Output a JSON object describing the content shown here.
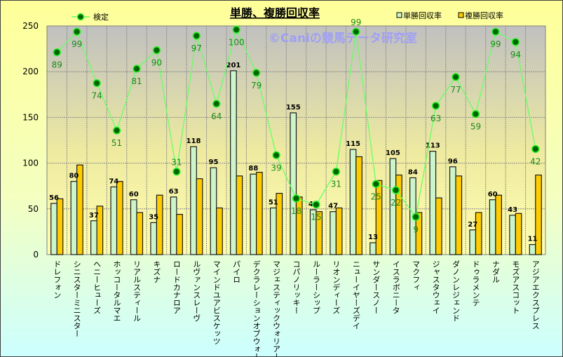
{
  "chart_data": {
    "type": "bar",
    "title": "単勝、複勝回収率",
    "watermark": "©Caniの競馬データ研究室",
    "xlabel": "",
    "ylabel": "",
    "ylim": [
      0,
      250
    ],
    "yticks": [
      0,
      50,
      100,
      150,
      200,
      250
    ],
    "grid": true,
    "legend_placement": "top",
    "categories": [
      "ドレフォン",
      "シニスターミニスター",
      "ヘニーヒューズ",
      "ホッコータルマエ",
      "リアルスティール",
      "キズナ",
      "ロードカナロア",
      "ルヴァンスレーヴ",
      "マインドユアビスケッツ",
      "パイロ",
      "デクラレーションオブウォー",
      "マジェスティックウォリアー",
      "コパノリッキー",
      "ルーラーシップ",
      "リオンディーズ",
      "ニューイヤーズデイ",
      "サンダースノー",
      "イスラボニータ",
      "マクフィ",
      "ジャスタウェイ",
      "ダノンレジェンド",
      "ドゥラメンテ",
      "ナダル",
      "モズアスコット",
      "アジアエクスプレス"
    ],
    "series": [
      {
        "name": "単勝回収率",
        "type": "bar",
        "color": "#ccf5cc",
        "labeled": true,
        "values": [
          56,
          80,
          37,
          74,
          60,
          35,
          63,
          118,
          95,
          201,
          88,
          51,
          155,
          49,
          47,
          115,
          13,
          105,
          84,
          113,
          96,
          27,
          60,
          43,
          11
        ]
      },
      {
        "name": "複勝回収率",
        "type": "bar",
        "color": "#ffcc00",
        "labeled": false,
        "values": [
          61,
          98,
          53,
          80,
          46,
          65,
          44,
          83,
          51,
          86,
          90,
          67,
          63,
          47,
          51,
          107,
          81,
          87,
          46,
          62,
          86,
          46,
          65,
          45,
          87
        ]
      },
      {
        "name": "検定",
        "type": "line",
        "axis": "secondary",
        "color": "#66ff66",
        "marker_color": "#006400",
        "y2lim": [
          -9.3,
          101.8
        ],
        "values": [
          89,
          99,
          74,
          51,
          81,
          90,
          31,
          97,
          64,
          100,
          79,
          39,
          18,
          15,
          31,
          99,
          25,
          22,
          9,
          63,
          77,
          59,
          99,
          94,
          42
        ]
      }
    ]
  }
}
